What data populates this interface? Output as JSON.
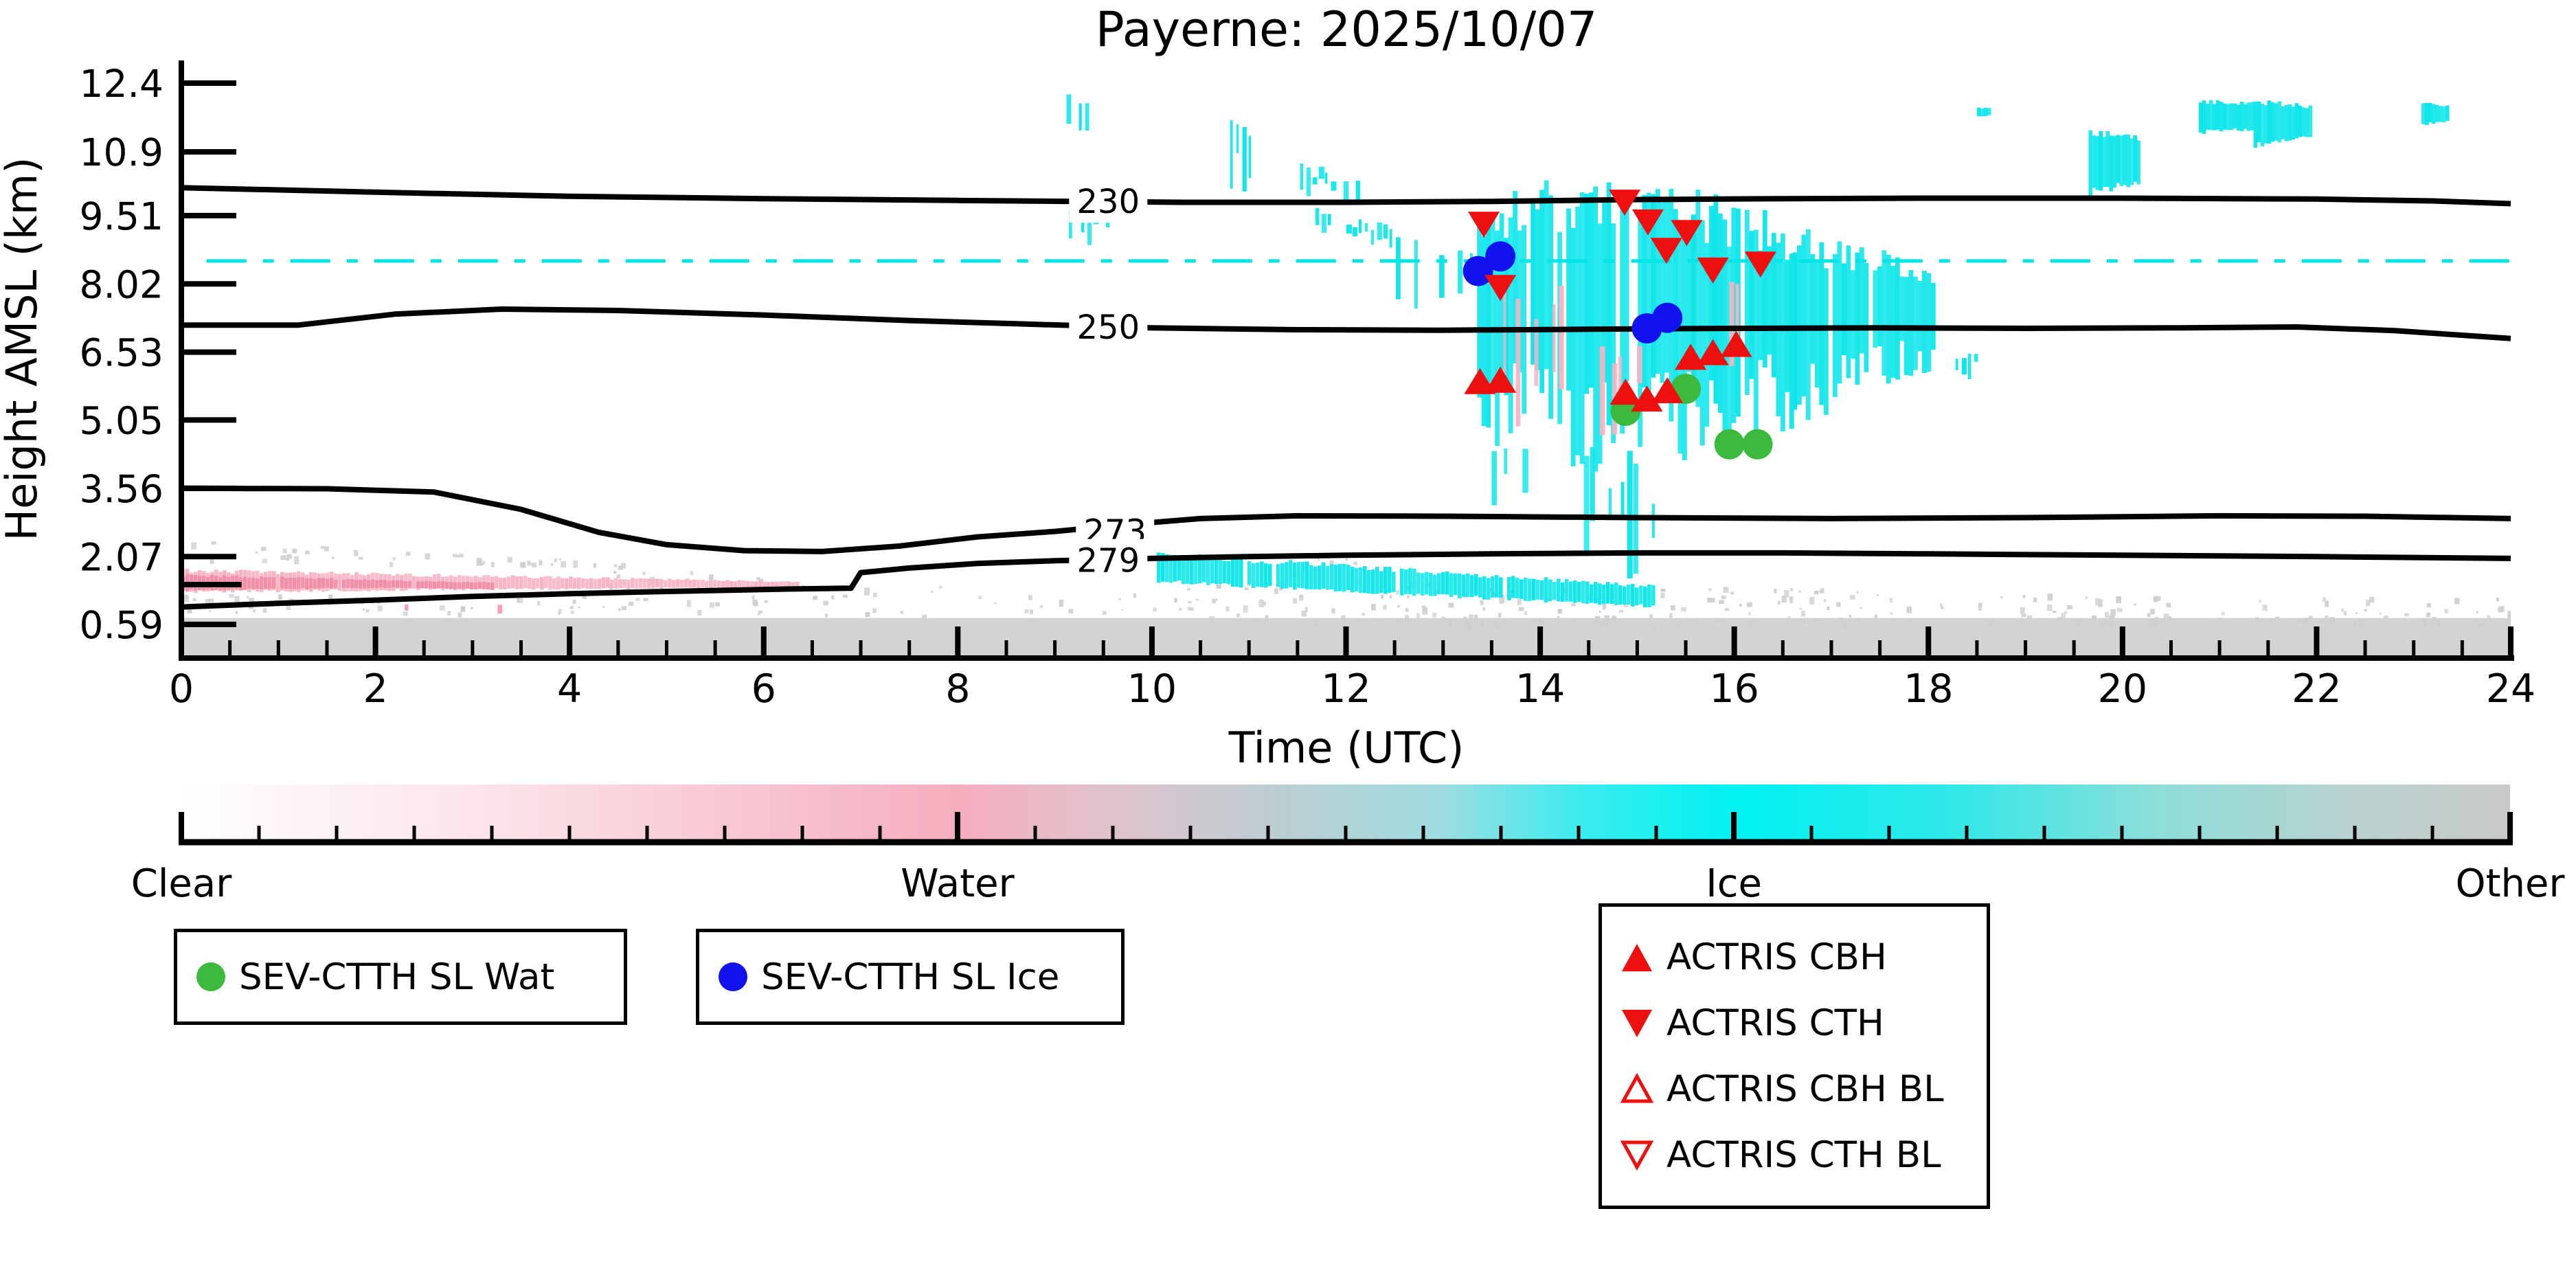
{
  "title": "Payerne: 2025/10/07",
  "axes": {
    "xlabel": "Time (UTC)",
    "ylabel": "Height AMSL (km)",
    "xlim": [
      0,
      24
    ],
    "x_major_step": 2,
    "x_minor_step": 0.5,
    "x_tick_labels": [
      "0",
      "2",
      "4",
      "6",
      "8",
      "10",
      "12",
      "14",
      "16",
      "18",
      "20",
      "22",
      "24"
    ],
    "y_ticks": [
      {
        "v": 12.4,
        "label": "12.4"
      },
      {
        "v": 10.9,
        "label": "10.9"
      },
      {
        "v": 9.51,
        "label": "9.51"
      },
      {
        "v": 8.02,
        "label": "8.02"
      },
      {
        "v": 6.53,
        "label": "6.53"
      },
      {
        "v": 5.05,
        "label": "5.05"
      },
      {
        "v": 3.56,
        "label": "3.56"
      },
      {
        "v": 2.07,
        "label": "2.07"
      },
      {
        "v": 0.59,
        "label": "0.59"
      }
    ]
  },
  "chart_data": {
    "type": "heatmap",
    "description": "Time-height cloud phase classification with temperature isotherms (K), SEV-CTTH single-layer cloud-top markers and ACTRIS cloud base/top markers",
    "x_unit": "hours UTC",
    "y_unit": "km AMSL",
    "colors": {
      "ice": "#0fe6ea",
      "ice_line": "#00e5e5",
      "water": "#f7b4c3",
      "water_strong": "#f28ca6",
      "other": "#cfcfcf",
      "other_solid": "#d3d3d3",
      "green": "#3cba3e",
      "blue": "#1212ee",
      "red": "#ee0f0f",
      "black": "#000000"
    },
    "isotherms_K": [
      {
        "level": "230",
        "label_t": 9.55,
        "label_km": 9.82,
        "points": [
          [
            0,
            10.12
          ],
          [
            2,
            10.02
          ],
          [
            4,
            9.93
          ],
          [
            6,
            9.88
          ],
          [
            8,
            9.84
          ],
          [
            9.2,
            9.82
          ],
          [
            10.3,
            9.8
          ],
          [
            12,
            9.8
          ],
          [
            13.5,
            9.82
          ],
          [
            15,
            9.86
          ],
          [
            16.5,
            9.88
          ],
          [
            18,
            9.89
          ],
          [
            20,
            9.89
          ],
          [
            22,
            9.87
          ],
          [
            23.2,
            9.83
          ],
          [
            24,
            9.77
          ]
        ]
      },
      {
        "level": "250",
        "label_t": 9.55,
        "label_km": 7.08,
        "points": [
          [
            0,
            7.12
          ],
          [
            1.2,
            7.12
          ],
          [
            2.2,
            7.36
          ],
          [
            3.3,
            7.47
          ],
          [
            4.5,
            7.44
          ],
          [
            6,
            7.34
          ],
          [
            7.5,
            7.22
          ],
          [
            8.6,
            7.15
          ],
          [
            10,
            7.06
          ],
          [
            11.5,
            7.02
          ],
          [
            13,
            7.01
          ],
          [
            14.5,
            7.03
          ],
          [
            16,
            7.05
          ],
          [
            17.5,
            7.06
          ],
          [
            19,
            7.05
          ],
          [
            20.5,
            7.06
          ],
          [
            21.8,
            7.08
          ],
          [
            22.8,
            7.0
          ],
          [
            23.5,
            6.9
          ],
          [
            24,
            6.83
          ]
        ]
      },
      {
        "level": "273",
        "label_t": 9.62,
        "label_km": 2.62,
        "points": [
          [
            0,
            3.56
          ],
          [
            1.5,
            3.55
          ],
          [
            2.6,
            3.48
          ],
          [
            3.5,
            3.1
          ],
          [
            4.3,
            2.6
          ],
          [
            5,
            2.33
          ],
          [
            5.8,
            2.2
          ],
          [
            6.6,
            2.18
          ],
          [
            7.4,
            2.3
          ],
          [
            8.2,
            2.5
          ],
          [
            9,
            2.62
          ],
          [
            9.8,
            2.78
          ],
          [
            10.5,
            2.9
          ],
          [
            11.5,
            2.96
          ],
          [
            13,
            2.95
          ],
          [
            15,
            2.92
          ],
          [
            17,
            2.9
          ],
          [
            19,
            2.92
          ],
          [
            21,
            2.96
          ],
          [
            22.5,
            2.95
          ],
          [
            24,
            2.9
          ]
        ]
      },
      {
        "level": "279",
        "label_t": 9.55,
        "label_km": 1.99,
        "points": [
          [
            0,
            0.97
          ],
          [
            1,
            1.05
          ],
          [
            2,
            1.12
          ],
          [
            3,
            1.2
          ],
          [
            4,
            1.26
          ],
          [
            4.8,
            1.3
          ],
          [
            5.5,
            1.33
          ],
          [
            6.2,
            1.36
          ],
          [
            6.9,
            1.38
          ],
          [
            7.0,
            1.72
          ],
          [
            7.5,
            1.82
          ],
          [
            8.2,
            1.92
          ],
          [
            9,
            1.98
          ],
          [
            10,
            2.03
          ],
          [
            11,
            2.07
          ],
          [
            12,
            2.1
          ],
          [
            13.5,
            2.13
          ],
          [
            15,
            2.15
          ],
          [
            16.5,
            2.15
          ],
          [
            18,
            2.13
          ],
          [
            20,
            2.1
          ],
          [
            22,
            2.07
          ],
          [
            24,
            2.03
          ]
        ]
      },
      {
        "level": "279",
        "label_t": null,
        "label_km": null,
        "points": [
          [
            0,
            1.46
          ],
          [
            0.62,
            1.46
          ]
        ]
      }
    ],
    "sublayer_line": {
      "km": 8.52,
      "t0": 0.26,
      "t1": 24,
      "style": "dash-dot",
      "color": "ice_line"
    },
    "markers": {
      "series": [
        {
          "name": "sev-ctth-sl-wat",
          "shape": "circle",
          "color": "green",
          "points": [
            [
              14.88,
              5.25
            ],
            [
              15.5,
              5.73
            ],
            [
              15.95,
              4.52
            ],
            [
              16.24,
              4.52
            ]
          ]
        },
        {
          "name": "sev-ctth-sl-ice",
          "shape": "circle",
          "color": "blue",
          "points": [
            [
              13.36,
              8.3
            ],
            [
              13.59,
              8.62
            ],
            [
              15.1,
              7.05
            ],
            [
              15.31,
              7.28
            ]
          ]
        },
        {
          "name": "actris-cbh",
          "shape": "tri-up",
          "color": "red",
          "points": [
            [
              13.38,
              5.87
            ],
            [
              13.59,
              5.9
            ],
            [
              14.88,
              5.64
            ],
            [
              15.1,
              5.49
            ],
            [
              15.31,
              5.67
            ],
            [
              15.55,
              6.4
            ],
            [
              15.78,
              6.5
            ],
            [
              16.02,
              6.68
            ]
          ]
        },
        {
          "name": "actris-cth",
          "shape": "tri-down",
          "color": "red",
          "points": [
            [
              13.42,
              9.34
            ],
            [
              13.59,
              7.96
            ],
            [
              14.87,
              9.82
            ],
            [
              15.11,
              9.39
            ],
            [
              15.3,
              8.77
            ],
            [
              15.51,
              9.16
            ],
            [
              15.78,
              8.34
            ],
            [
              16.27,
              8.47
            ]
          ]
        },
        {
          "name": "actris-cbh-bl",
          "shape": "tri-up-open",
          "color": "red",
          "points": []
        },
        {
          "name": "actris-cth-bl",
          "shape": "tri-down-open",
          "color": "red",
          "points": []
        }
      ]
    },
    "region_format": "[t_start_h, t_end_h, kmTop_at_start, kmTop_at_end, kmBot_at_start, kmBot_at_end, mode, color_key, density, seed]",
    "cloud_regions": [
      [
        0,
        24,
        0.73,
        0.73,
        0,
        0,
        "solid",
        "other_solid",
        1,
        1
      ],
      [
        0,
        4.6,
        2.45,
        1.98,
        1.93,
        1.9,
        "speckle",
        "other",
        0.85,
        11
      ],
      [
        4.4,
        6.4,
        2.0,
        1.62,
        1.35,
        1.3,
        "speckle",
        "other",
        0.4,
        12
      ],
      [
        0,
        4.9,
        1.28,
        1.25,
        0.84,
        0.8,
        "speckle",
        "other",
        0.6,
        13
      ],
      [
        4.9,
        8.35,
        1.25,
        1.5,
        0.78,
        0.75,
        "speckle",
        "other",
        0.3,
        14
      ],
      [
        8.3,
        10.2,
        1.25,
        1.3,
        0.63,
        0.6,
        "speckle",
        "other",
        0.3,
        15
      ],
      [
        10.2,
        17.2,
        1.55,
        1.38,
        0.6,
        0.6,
        "speckle",
        "other",
        0.7,
        16
      ],
      [
        11.25,
        12.3,
        2.28,
        1.95,
        1.62,
        1.5,
        "speckle",
        "other",
        0.3,
        17
      ],
      [
        17.2,
        24,
        1.32,
        1.18,
        0.6,
        0.6,
        "speckle",
        "other",
        0.45,
        18
      ],
      [
        19,
        24,
        0.98,
        0.92,
        0.6,
        0.6,
        "speckle",
        "other",
        0.45,
        19
      ],
      [
        9.12,
        9.42,
        12.18,
        12.1,
        11.4,
        11.3,
        "streak",
        "ice",
        0.5,
        21
      ],
      [
        9.08,
        9.62,
        10.1,
        9.88,
        8.78,
        8.68,
        "streak",
        "ice",
        0.45,
        22
      ],
      [
        10.55,
        11.0,
        12.1,
        11.45,
        9.65,
        9.3,
        "streak",
        "ice",
        0.5,
        23
      ],
      [
        11.4,
        12.12,
        10.72,
        10.4,
        9.9,
        9.58,
        "streak",
        "ice",
        0.55,
        24
      ],
      [
        11.62,
        12.45,
        9.72,
        9.3,
        8.9,
        8.52,
        "streak",
        "ice",
        0.6,
        25
      ],
      [
        12.45,
        13.35,
        9.3,
        8.95,
        7.55,
        7.15,
        "streak",
        "ice",
        0.65,
        26
      ],
      [
        13.35,
        15.05,
        9.5,
        9.9,
        5.3,
        4.72,
        "dense",
        "ice",
        0.93,
        27
      ],
      [
        15.05,
        16.6,
        9.9,
        8.95,
        4.95,
        5.6,
        "dense",
        "ice",
        0.95,
        28
      ],
      [
        16.6,
        18.05,
        8.95,
        8.15,
        5.6,
        6.45,
        "dense",
        "ice",
        0.85,
        29
      ],
      [
        18.28,
        18.5,
        6.62,
        6.55,
        5.95,
        5.88,
        "streak",
        "ice",
        0.5,
        30
      ],
      [
        19.65,
        20.15,
        11.32,
        11.2,
        10.0,
        10.25,
        "patch",
        "ice",
        0.8,
        31
      ],
      [
        20.75,
        21.35,
        12.0,
        11.95,
        11.32,
        11.4,
        "patch",
        "ice",
        0.85,
        32
      ],
      [
        21.35,
        21.95,
        12.0,
        11.88,
        11.05,
        11.25,
        "patch",
        "ice",
        0.8,
        33
      ],
      [
        23.08,
        23.35,
        11.96,
        11.9,
        11.5,
        11.58,
        "patch",
        "ice",
        0.85,
        34
      ],
      [
        18.5,
        18.64,
        11.86,
        11.84,
        11.68,
        11.7,
        "patch",
        "ice",
        0.8,
        35
      ],
      [
        10.05,
        15.15,
        2.12,
        1.42,
        1.52,
        0.98,
        "band",
        "ice",
        0.92,
        36
      ],
      [
        14.45,
        15.25,
        4.6,
        4.4,
        1.1,
        0.8,
        "streak",
        "ice",
        0.22,
        37
      ],
      [
        13.5,
        14.2,
        4.66,
        4.3,
        3.1,
        2.6,
        "streak",
        "ice",
        0.25,
        38
      ],
      [
        13.62,
        14.25,
        8.3,
        8.0,
        4.95,
        4.62,
        "streak",
        "water",
        0.3,
        41
      ],
      [
        14.55,
        15.0,
        7.0,
        6.75,
        4.25,
        4.0,
        "streak",
        "water",
        0.26,
        42
      ],
      [
        15.95,
        16.9,
        8.45,
        8.05,
        5.65,
        5.4,
        "streak",
        "water",
        0.3,
        43
      ],
      [
        12.35,
        12.62,
        9.3,
        9.1,
        8.62,
        8.5,
        "streak",
        "water",
        0.18,
        44
      ],
      [
        0,
        6.35,
        1.76,
        1.52,
        1.3,
        1.41,
        "band",
        "water",
        0.95,
        45
      ],
      [
        0,
        3.2,
        1.66,
        1.5,
        1.34,
        1.42,
        "band",
        "water_strong",
        0.9,
        46
      ],
      [
        0.2,
        3.9,
        1.06,
        1.02,
        0.68,
        0.66,
        "streak",
        "water_strong",
        0.05,
        47
      ]
    ]
  },
  "colorbar": {
    "labels": [
      {
        "text": "Clear",
        "frac": 0
      },
      {
        "text": "Water",
        "frac": 0.3333
      },
      {
        "text": "Ice",
        "frac": 0.6667
      },
      {
        "text": "Other",
        "frac": 1
      }
    ],
    "n_intervals": 30,
    "major_every": 10,
    "gradient": [
      [
        0,
        "#ffffff"
      ],
      [
        0.15,
        "#fbdfe6"
      ],
      [
        0.25,
        "#f8c4d0"
      ],
      [
        0.3333,
        "#f6aebe"
      ],
      [
        0.4,
        "#dfc3cc"
      ],
      [
        0.47,
        "#bccdd1"
      ],
      [
        0.54,
        "#9fdce0"
      ],
      [
        0.6,
        "#3cecee"
      ],
      [
        0.6667,
        "#00f2f2"
      ],
      [
        0.76,
        "#30e8e8"
      ],
      [
        0.85,
        "#8eded9"
      ],
      [
        0.93,
        "#b8d2cf"
      ],
      [
        1,
        "#c9c9c9"
      ]
    ]
  },
  "legends": {
    "wat": {
      "label": "SEV-CTTH SL Wat",
      "marker_color": "green"
    },
    "ice": {
      "label": "SEV-CTTH SL Ice",
      "marker_color": "blue"
    },
    "actris": {
      "entries": [
        {
          "label": "ACTRIS CBH",
          "shape": "tri-up",
          "filled": true
        },
        {
          "label": "ACTRIS CTH",
          "shape": "tri-down",
          "filled": true
        },
        {
          "label": "ACTRIS CBH BL",
          "shape": "tri-up",
          "filled": false
        },
        {
          "label": "ACTRIS CTH BL",
          "shape": "tri-down",
          "filled": false
        }
      ]
    }
  }
}
